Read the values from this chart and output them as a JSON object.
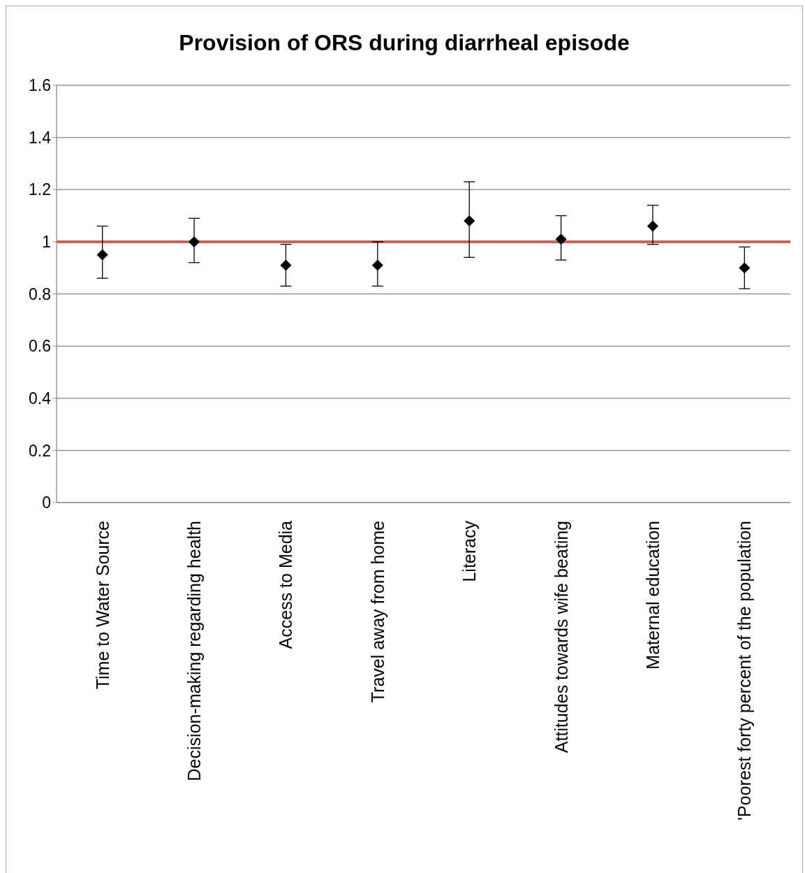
{
  "chart_data": {
    "type": "scatter",
    "title": "Provision of ORS during diarrheal episode",
    "categories": [
      "Time to Water Source",
      "Decision-making regarding health",
      "Access to Media",
      "Travel away from home",
      "Literacy",
      "Attitudes towards wife beating",
      "Maternal education",
      "'Poorest forty percent of the population"
    ],
    "values": [
      0.95,
      1.0,
      0.91,
      0.91,
      1.08,
      1.01,
      1.06,
      0.9
    ],
    "errors": [
      [
        0.86,
        1.06
      ],
      [
        0.92,
        1.09
      ],
      [
        0.83,
        0.99
      ],
      [
        0.83,
        1.0
      ],
      [
        0.94,
        1.23
      ],
      [
        0.93,
        1.1
      ],
      [
        0.99,
        1.14
      ],
      [
        0.82,
        0.98
      ]
    ],
    "color": "#000000",
    "marker": "diamond",
    "ylim": [
      0,
      1.6
    ],
    "yticks": [
      0,
      0.2,
      0.4,
      0.6,
      0.8,
      1,
      1.2,
      1.4,
      1.6
    ],
    "grid": "y",
    "ref_lines": [
      {
        "axis": "y",
        "value": 1,
        "color": "#d0605a"
      }
    ]
  }
}
